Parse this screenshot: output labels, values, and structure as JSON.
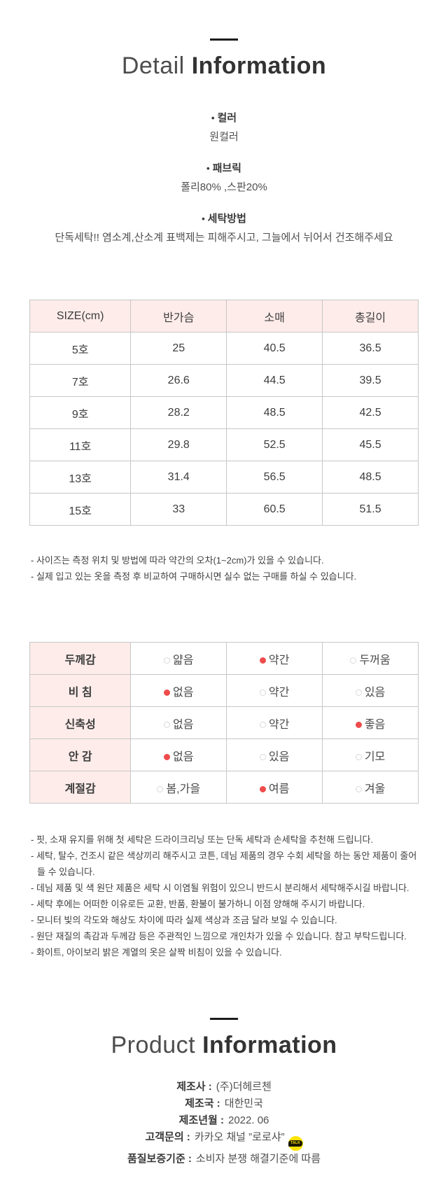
{
  "bullet": "•",
  "detail_header": {
    "light": "Detail",
    "bold": "Information"
  },
  "product_header": {
    "light": "Product",
    "bold": "Information"
  },
  "sections": [
    {
      "heading": "컬러",
      "body": "원컬러"
    },
    {
      "heading": "패브릭",
      "body": "폴리80% ,스판20%"
    },
    {
      "heading": "세탁방법",
      "body": "단독세탁!! 염소계,산소계 표백제는 피해주시고, 그늘에서 뉘어서 건조해주세요"
    }
  ],
  "size_table": {
    "headers": [
      "SIZE(cm)",
      "반가슴",
      "소매",
      "총길이"
    ],
    "rows": [
      [
        "5호",
        "25",
        "40.5",
        "36.5"
      ],
      [
        "7호",
        "26.6",
        "44.5",
        "39.5"
      ],
      [
        "9호",
        "28.2",
        "48.5",
        "42.5"
      ],
      [
        "11호",
        "29.8",
        "52.5",
        "45.5"
      ],
      [
        "13호",
        "31.4",
        "56.5",
        "48.5"
      ],
      [
        "15호",
        "33",
        "60.5",
        "51.5"
      ]
    ]
  },
  "size_notes": [
    "- 사이즈는 측정 위치 및 방법에 따라 약간의 오차(1~2cm)가 있을 수 있습니다.",
    "- 실제 입고 있는 옷을 측정 후 비교하여 구매하시면 실수 없는 구매를 하실 수 있습니다."
  ],
  "attribute_table": {
    "rows": [
      {
        "label": "두께감",
        "options": [
          {
            "text": "얇음",
            "selected": false
          },
          {
            "text": "약간",
            "selected": true
          },
          {
            "text": "두꺼움",
            "selected": false
          }
        ]
      },
      {
        "label": "비 침",
        "options": [
          {
            "text": "없음",
            "selected": true
          },
          {
            "text": "약간",
            "selected": false
          },
          {
            "text": "있음",
            "selected": false
          }
        ]
      },
      {
        "label": "신축성",
        "options": [
          {
            "text": "없음",
            "selected": false
          },
          {
            "text": "약간",
            "selected": false
          },
          {
            "text": "좋음",
            "selected": true
          }
        ]
      },
      {
        "label": "안 감",
        "options": [
          {
            "text": "없음",
            "selected": true
          },
          {
            "text": "있음",
            "selected": false
          },
          {
            "text": "기모",
            "selected": false
          }
        ]
      },
      {
        "label": "계절감",
        "options": [
          {
            "text": "봄,가을",
            "selected": false
          },
          {
            "text": "여름",
            "selected": true
          },
          {
            "text": "겨울",
            "selected": false
          }
        ]
      }
    ]
  },
  "care_notes": [
    "- 핏, 소재 유지를 위해 첫 세탁은 드라이크리닝 또는 단독 세탁과 손세탁을 추천해 드립니다.",
    "- 세탁, 탈수, 건조시 같은 색상끼리 해주시고 코튼, 데님 제품의 경우 수회 세탁을 하는 동안 제품이 줄어들 수 있습니다.",
    "- 데님 제품 및 색 원단 제품은 세탁 시 이염될 위험이 있으니 반드시 분리해서 세탁해주시길 바랍니다.",
    "- 세탁 후에는 어떠한 이유로든 교환, 반품, 환불이 불가하니 이점 양해해 주시기 바랍니다.",
    "- 모니터 빛의 각도와 해상도 차이에 따라 실제 색상과 조금 달라 보일 수 있습니다.",
    "- 원단 재질의 촉감과 두께감 등은 주관적인 느낌으로 개인차가 있을 수 있습니다. 참고 부탁드립니다.",
    "- 화이트, 아이보리 밝은 계열의 옷은 살짝 비침이 있을 수 있습니다."
  ],
  "product_info": {
    "rows": [
      {
        "label": "제조사 :",
        "value": "(주)더헤르첸"
      },
      {
        "label": "제조국 :",
        "value": "대한민국"
      },
      {
        "label": "제조년월 :",
        "value": "2022. 06"
      },
      {
        "label": "고객문의 :",
        "value": "카카오 채널 ”로로샤”"
      },
      {
        "label": "품질보증기준 :",
        "value": "소비자 분쟁 해결기준에 따름"
      }
    ],
    "kakao_icon_text": "TALK"
  },
  "colors": {
    "header_pink": "#fdecea",
    "selected_red": "#f04b4b",
    "kakao_yellow": "#ffe300",
    "title_dark": "#333333"
  }
}
